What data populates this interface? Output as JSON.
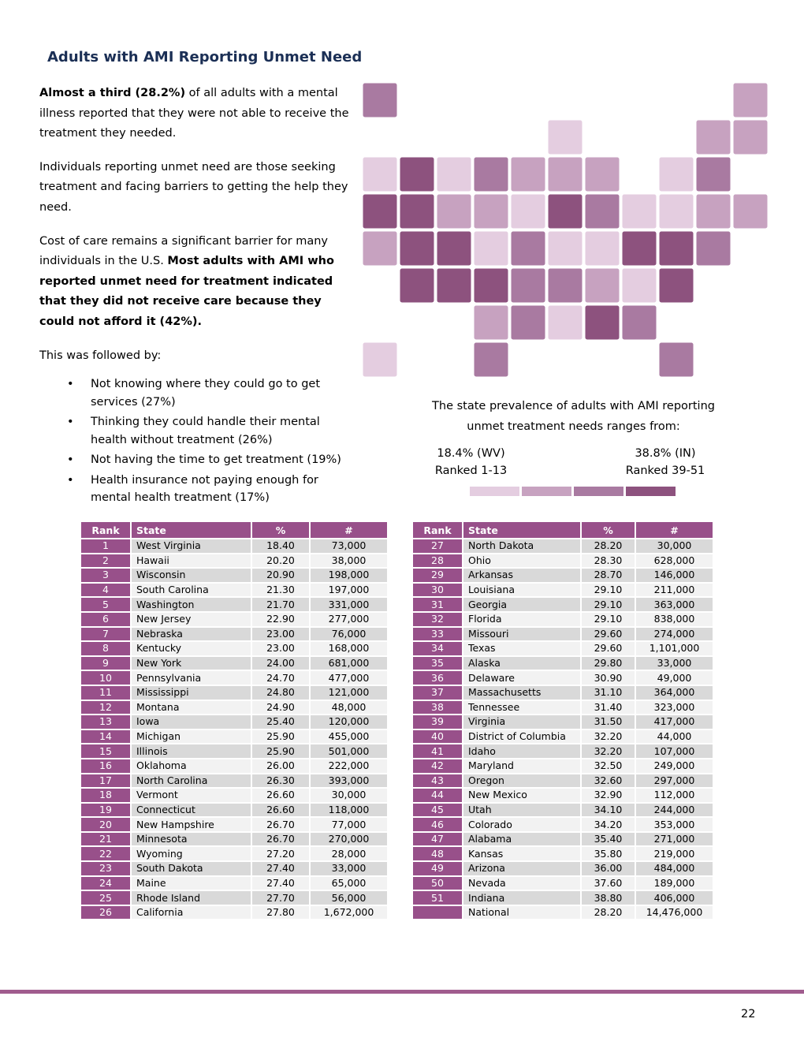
{
  "title": "Adults with AMI Reporting Unmet Need",
  "paragraphs": [
    [
      {
        "text": "Almost a third (28.2%)",
        "bold": true
      },
      {
        "text": " of all adults with a mental illness reported that they were not able to receive the treatment they needed.",
        "bold": false
      }
    ],
    [
      {
        "text": "Individuals reporting unmet need are those seeking treatment and facing barriers to getting the help they need.",
        "bold": false
      }
    ],
    [
      {
        "text": "Cost of care remains a significant barrier for many individuals in the U.S. ",
        "bold": false
      },
      {
        "text": "Most adults with AMI who reported unmet need for treatment indicated that they did not receive care because they could not afford it (42%).",
        "bold": true
      }
    ],
    [
      {
        "text": "This was followed by:",
        "bold": false
      }
    ]
  ],
  "bullets": [
    "Not knowing where they could go to get services (27%)",
    "Thinking they could handle their mental health without treatment (26%)",
    "Not having the time to get treatment (19%)",
    "Health insurance not paying enough for mental health treatment (17%)"
  ],
  "map": {
    "caption": "The state prevalence of adults with AMI reporting unmet treatment needs ranges from:",
    "low_value": "18.4% (WV)",
    "low_label": "Ranked 1-13",
    "high_value": "38.8% (IN)",
    "high_label": "Ranked 39-51",
    "colors": [
      "#e4cde0",
      "#c7a2c0",
      "#a97aa1",
      "#8d527e"
    ]
  },
  "tables": [
    {
      "header": [
        "Rank",
        "State",
        "%",
        "#"
      ],
      "rows": [
        [
          "1",
          "West Virginia",
          "18.40",
          "73,000"
        ],
        [
          "2",
          "Hawaii",
          "20.20",
          "38,000"
        ],
        [
          "3",
          "Wisconsin",
          "20.90",
          "198,000"
        ],
        [
          "4",
          "South Carolina",
          "21.30",
          "197,000"
        ],
        [
          "5",
          "Washington",
          "21.70",
          "331,000"
        ],
        [
          "6",
          "New Jersey",
          "22.90",
          "277,000"
        ],
        [
          "7",
          "Nebraska",
          "23.00",
          "76,000"
        ],
        [
          "8",
          "Kentucky",
          "23.00",
          "168,000"
        ],
        [
          "9",
          "New York",
          "24.00",
          "681,000"
        ],
        [
          "10",
          "Pennsylvania",
          "24.70",
          "477,000"
        ],
        [
          "11",
          "Mississippi",
          "24.80",
          "121,000"
        ],
        [
          "12",
          "Montana",
          "24.90",
          "48,000"
        ],
        [
          "13",
          "Iowa",
          "25.40",
          "120,000"
        ],
        [
          "14",
          "Michigan",
          "25.90",
          "455,000"
        ],
        [
          "15",
          "Illinois",
          "25.90",
          "501,000"
        ],
        [
          "16",
          "Oklahoma",
          "26.00",
          "222,000"
        ],
        [
          "17",
          "North Carolina",
          "26.30",
          "393,000"
        ],
        [
          "18",
          "Vermont",
          "26.60",
          "30,000"
        ],
        [
          "19",
          "Connecticut",
          "26.60",
          "118,000"
        ],
        [
          "20",
          "New Hampshire",
          "26.70",
          "77,000"
        ],
        [
          "21",
          "Minnesota",
          "26.70",
          "270,000"
        ],
        [
          "22",
          "Wyoming",
          "27.20",
          "28,000"
        ],
        [
          "23",
          "South Dakota",
          "27.40",
          "33,000"
        ],
        [
          "24",
          "Maine",
          "27.40",
          "65,000"
        ],
        [
          "25",
          "Rhode Island",
          "27.70",
          "56,000"
        ],
        [
          "26",
          "California",
          "27.80",
          "1,672,000"
        ]
      ]
    },
    {
      "header": [
        "Rank",
        "State",
        "%",
        "#"
      ],
      "rows": [
        [
          "27",
          "North Dakota",
          "28.20",
          "30,000"
        ],
        [
          "28",
          "Ohio",
          "28.30",
          "628,000"
        ],
        [
          "29",
          "Arkansas",
          "28.70",
          "146,000"
        ],
        [
          "30",
          "Louisiana",
          "29.10",
          "211,000"
        ],
        [
          "31",
          "Georgia",
          "29.10",
          "363,000"
        ],
        [
          "32",
          "Florida",
          "29.10",
          "838,000"
        ],
        [
          "33",
          "Missouri",
          "29.60",
          "274,000"
        ],
        [
          "34",
          "Texas",
          "29.60",
          "1,101,000"
        ],
        [
          "35",
          "Alaska",
          "29.80",
          "33,000"
        ],
        [
          "36",
          "Delaware",
          "30.90",
          "49,000"
        ],
        [
          "37",
          "Massachusetts",
          "31.10",
          "364,000"
        ],
        [
          "38",
          "Tennessee",
          "31.40",
          "323,000"
        ],
        [
          "39",
          "Virginia",
          "31.50",
          "417,000"
        ],
        [
          "40",
          "District of Columbia",
          "32.20",
          "44,000"
        ],
        [
          "41",
          "Idaho",
          "32.20",
          "107,000"
        ],
        [
          "42",
          "Maryland",
          "32.50",
          "249,000"
        ],
        [
          "43",
          "Oregon",
          "32.60",
          "297,000"
        ],
        [
          "44",
          "New Mexico",
          "32.90",
          "112,000"
        ],
        [
          "45",
          "Utah",
          "34.10",
          "244,000"
        ],
        [
          "46",
          "Colorado",
          "34.20",
          "353,000"
        ],
        [
          "47",
          "Alabama",
          "35.40",
          "271,000"
        ],
        [
          "48",
          "Kansas",
          "35.80",
          "219,000"
        ],
        [
          "49",
          "Arizona",
          "36.00",
          "484,000"
        ],
        [
          "50",
          "Nevada",
          "37.60",
          "189,000"
        ],
        [
          "51",
          "Indiana",
          "38.80",
          "406,000"
        ],
        [
          null,
          "National",
          "28.20",
          "14,476,000"
        ]
      ]
    }
  ],
  "page_number": "22"
}
